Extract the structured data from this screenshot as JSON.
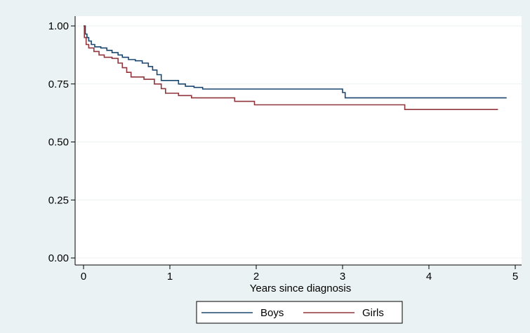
{
  "chart_data": {
    "type": "line",
    "title": "",
    "xlabel": "Years since diagnosis",
    "ylabel": "",
    "xlim": [
      0,
      5
    ],
    "ylim": [
      0,
      1
    ],
    "xticks": [
      0,
      1,
      2,
      3,
      4,
      5
    ],
    "xtick_labels": [
      "0",
      "1",
      "2",
      "3",
      "4",
      "5"
    ],
    "yticks": [
      0,
      0.25,
      0.5,
      0.75,
      1.0
    ],
    "ytick_labels": [
      "0.00",
      "0.25",
      "0.50",
      "0.75",
      "1.00"
    ],
    "grid": "horizontal",
    "legend_position": "bottom",
    "step": true,
    "series": [
      {
        "name": "Boys",
        "color": "#1a476f",
        "points": [
          [
            0.0,
            1.0
          ],
          [
            0.02,
            0.965
          ],
          [
            0.04,
            0.95
          ],
          [
            0.06,
            0.935
          ],
          [
            0.09,
            0.92
          ],
          [
            0.13,
            0.91
          ],
          [
            0.2,
            0.905
          ],
          [
            0.27,
            0.895
          ],
          [
            0.33,
            0.885
          ],
          [
            0.4,
            0.875
          ],
          [
            0.45,
            0.865
          ],
          [
            0.52,
            0.855
          ],
          [
            0.6,
            0.85
          ],
          [
            0.68,
            0.84
          ],
          [
            0.75,
            0.825
          ],
          [
            0.8,
            0.81
          ],
          [
            0.85,
            0.79
          ],
          [
            0.9,
            0.765
          ],
          [
            1.1,
            0.75
          ],
          [
            1.18,
            0.74
          ],
          [
            1.28,
            0.735
          ],
          [
            1.38,
            0.728
          ],
          [
            3.0,
            0.713
          ],
          [
            3.03,
            0.69
          ],
          [
            4.9,
            0.69
          ]
        ]
      },
      {
        "name": "Girls",
        "color": "#90353b",
        "points": [
          [
            0.0,
            1.0
          ],
          [
            0.01,
            0.95
          ],
          [
            0.03,
            0.92
          ],
          [
            0.06,
            0.905
          ],
          [
            0.12,
            0.89
          ],
          [
            0.18,
            0.875
          ],
          [
            0.24,
            0.865
          ],
          [
            0.33,
            0.86
          ],
          [
            0.4,
            0.84
          ],
          [
            0.45,
            0.82
          ],
          [
            0.5,
            0.8
          ],
          [
            0.55,
            0.78
          ],
          [
            0.7,
            0.77
          ],
          [
            0.82,
            0.75
          ],
          [
            0.9,
            0.73
          ],
          [
            0.95,
            0.71
          ],
          [
            1.1,
            0.7
          ],
          [
            1.25,
            0.69
          ],
          [
            1.75,
            0.675
          ],
          [
            1.98,
            0.66
          ],
          [
            3.72,
            0.64
          ],
          [
            4.8,
            0.64
          ]
        ]
      }
    ]
  }
}
